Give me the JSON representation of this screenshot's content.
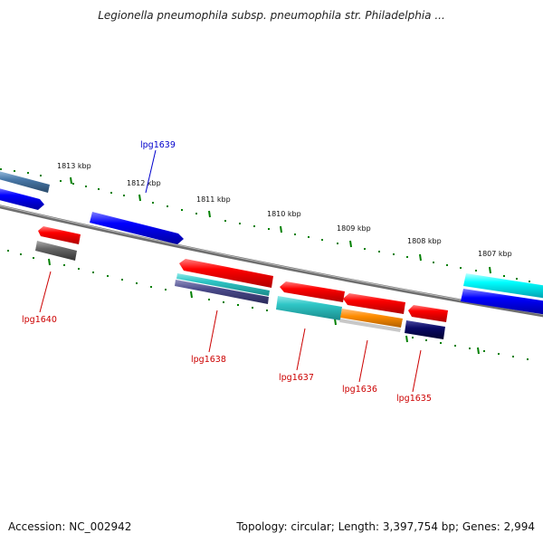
{
  "header": {
    "title": "Legionella pneumophila subsp. pneumophila str. Philadelphia ..."
  },
  "footer": {
    "accession": "Accession: NC_002942",
    "stats": "Topology: circular; Length: 3,397,754 bp; Genes: 2,994"
  },
  "scale_labels": [
    "1813 kbp",
    "1812 kbp",
    "1811 kbp",
    "1810 kbp",
    "1809 kbp",
    "1808 kbp",
    "1807 kbp"
  ],
  "gene_labels": [
    "lpg1639",
    "lpg1640",
    "lpg1638",
    "lpg1637",
    "lpg1636",
    "lpg1635"
  ],
  "colors": {
    "forward_gene": "#0000ff",
    "reverse_gene": "#ff0000",
    "label_forward": "#0000cc",
    "label_reverse": "#cc0000",
    "tick_green": "#008000",
    "backbone": "#777777",
    "cyan": "#00ffff",
    "teal": "#2fc6c6",
    "orange": "#ff8c00",
    "navy": "#0a0a66",
    "steel": "#4a7aaa",
    "gray": "#666666",
    "slate": "#4a4a8a"
  }
}
